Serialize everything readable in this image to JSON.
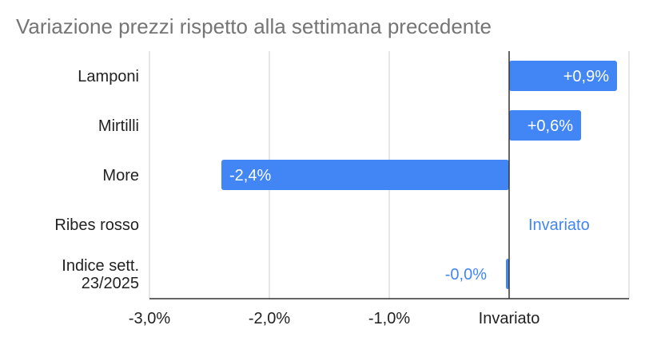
{
  "chart_data": {
    "type": "bar",
    "orientation": "horizontal",
    "title": "Variazione prezzi rispetto alla settimana precedente",
    "categories": [
      [
        "Lamponi"
      ],
      [
        "Mirtilli"
      ],
      [
        "More"
      ],
      [
        "Ribes rosso"
      ],
      [
        "Indice sett.",
        "23/2025"
      ]
    ],
    "values": [
      0.9,
      0.6,
      -2.4,
      0.0,
      -0.02
    ],
    "data_labels": [
      "+0,9%",
      "+0,6%",
      "-2,4%",
      "Invariato",
      "-0,0%"
    ],
    "xlim": [
      -3.0,
      1.0
    ],
    "xticks": [
      {
        "value": -3.0,
        "label": "-3,0%"
      },
      {
        "value": -2.0,
        "label": "-2,0%"
      },
      {
        "value": -1.0,
        "label": "-1,0%"
      },
      {
        "value": 0.0,
        "label": "Invariato"
      }
    ],
    "grid": true,
    "legend": "none",
    "colors": {
      "bar": "#4285f4",
      "label_inside": "#ffffff",
      "label_outside": "#4285f4",
      "grid": "#cccccc",
      "axis": "#333333"
    }
  }
}
